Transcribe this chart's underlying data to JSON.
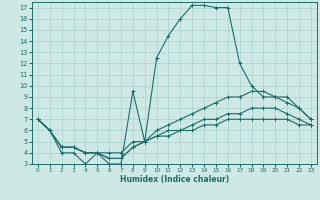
{
  "xlabel": "Humidex (Indice chaleur)",
  "bg_color": "#cde8e5",
  "grid_color": "#b0d5d0",
  "line_color": "#1a6e6a",
  "xlim": [
    -0.5,
    23.5
  ],
  "ylim": [
    3,
    17.5
  ],
  "xticks": [
    0,
    1,
    2,
    3,
    4,
    5,
    6,
    7,
    8,
    9,
    10,
    11,
    12,
    13,
    14,
    15,
    16,
    17,
    18,
    19,
    20,
    21,
    22,
    23
  ],
  "yticks": [
    3,
    4,
    5,
    6,
    7,
    8,
    9,
    10,
    11,
    12,
    13,
    14,
    15,
    16,
    17
  ],
  "lines": [
    {
      "x": [
        0,
        1,
        2,
        3,
        4,
        5,
        6,
        7,
        8,
        9,
        10,
        11,
        12,
        13,
        14,
        15,
        16,
        17,
        18,
        19,
        20,
        21,
        22,
        23
      ],
      "y": [
        7,
        6,
        4,
        4,
        3,
        4,
        3,
        3,
        9.5,
        5,
        12.5,
        14.5,
        16,
        17.2,
        17.2,
        17,
        17,
        12,
        10,
        9,
        9,
        9,
        8,
        7
      ]
    },
    {
      "x": [
        0,
        1,
        2,
        3,
        4,
        5,
        6,
        7,
        8,
        9,
        10,
        11,
        12,
        13,
        14,
        15,
        16,
        17,
        18,
        19,
        20,
        21,
        22,
        23
      ],
      "y": [
        7,
        6,
        4.5,
        4.5,
        4,
        4,
        4,
        4,
        5,
        5,
        6,
        6.5,
        7,
        7.5,
        8,
        8.5,
        9,
        9,
        9.5,
        9.5,
        9,
        8.5,
        8,
        7
      ]
    },
    {
      "x": [
        0,
        1,
        2,
        3,
        4,
        5,
        6,
        7,
        8,
        9,
        10,
        11,
        12,
        13,
        14,
        15,
        16,
        17,
        18,
        19,
        20,
        21,
        22,
        23
      ],
      "y": [
        7,
        6,
        4.5,
        4.5,
        4,
        4,
        3.5,
        3.5,
        4.5,
        5,
        5.5,
        6,
        6,
        6.5,
        7,
        7,
        7.5,
        7.5,
        8,
        8,
        8,
        7.5,
        7,
        6.5
      ]
    },
    {
      "x": [
        0,
        1,
        2,
        3,
        4,
        5,
        6,
        7,
        8,
        9,
        10,
        11,
        12,
        13,
        14,
        15,
        16,
        17,
        18,
        19,
        20,
        21,
        22,
        23
      ],
      "y": [
        7,
        6,
        4.5,
        4.5,
        4,
        4,
        3.5,
        3.5,
        4.5,
        5,
        5.5,
        5.5,
        6,
        6,
        6.5,
        6.5,
        7,
        7,
        7,
        7,
        7,
        7,
        6.5,
        6.5
      ]
    }
  ]
}
